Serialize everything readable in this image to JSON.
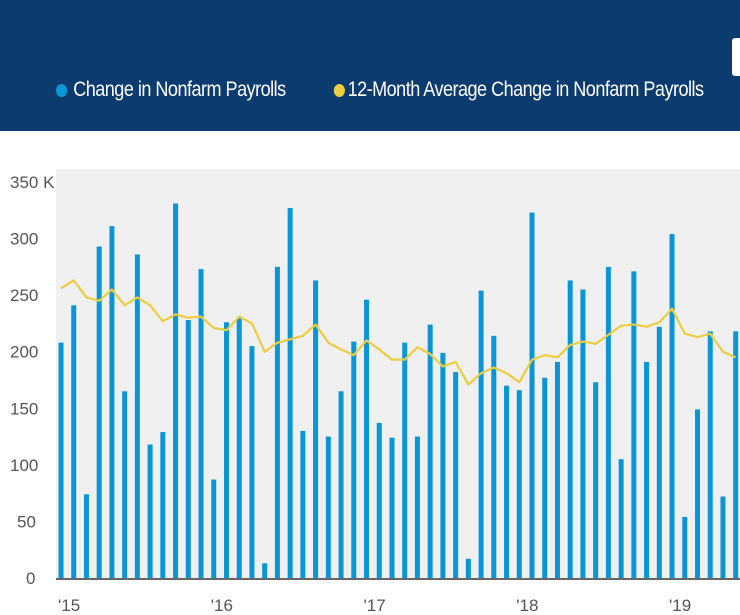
{
  "legend": {
    "series1": "Change in Nonfarm Payrolls",
    "series2": "12-Month Average Change in Nonfarm Payrolls"
  },
  "colors": {
    "header": "#0c3b6f",
    "bar": "#0a96d6",
    "line": "#eccd3f",
    "plot_bg": "#f0f0f0"
  },
  "chart_data": {
    "type": "bar",
    "title": "",
    "xlabel": "",
    "ylabel": "",
    "ylim": [
      0,
      350
    ],
    "grid": false,
    "legend_position": "top",
    "y_ticks": [
      "0",
      "50",
      "100",
      "150",
      "200",
      "250",
      "300",
      "350 K"
    ],
    "y_tick_values": [
      0,
      50,
      100,
      150,
      200,
      250,
      300,
      350
    ],
    "x_ticks": [
      "'15",
      "'16",
      "'17",
      "'18",
      "'19"
    ],
    "x_tick_month_index": [
      0,
      12,
      24,
      36,
      48
    ],
    "categories_start": "Jan 2015",
    "series": [
      {
        "name": "Change in Nonfarm Payrolls",
        "type": "bar",
        "values": [
          208,
          241,
          74,
          293,
          311,
          165,
          286,
          118,
          129,
          331,
          228,
          273,
          87,
          226,
          230,
          205,
          13,
          275,
          327,
          130,
          263,
          125,
          165,
          209,
          246,
          137,
          124,
          208,
          125,
          224,
          199,
          182,
          17,
          254,
          214,
          170,
          166,
          323,
          177,
          191,
          263,
          255,
          173,
          275,
          105,
          271,
          191,
          222,
          304,
          54,
          149,
          218,
          72,
          218
        ]
      },
      {
        "name": "12-Month Average Change in Nonfarm Payrolls",
        "type": "line",
        "values": [
          256,
          263,
          248,
          245,
          255,
          241,
          248,
          241,
          227,
          233,
          230,
          231,
          221,
          219,
          231,
          225,
          200,
          208,
          211,
          214,
          224,
          208,
          202,
          197,
          210,
          202,
          193,
          193,
          204,
          198,
          187,
          191,
          171,
          181,
          186,
          181,
          173,
          193,
          197,
          195,
          206,
          209,
          207,
          215,
          223,
          224,
          222,
          226,
          238,
          216,
          213,
          216,
          200,
          195
        ]
      }
    ]
  }
}
